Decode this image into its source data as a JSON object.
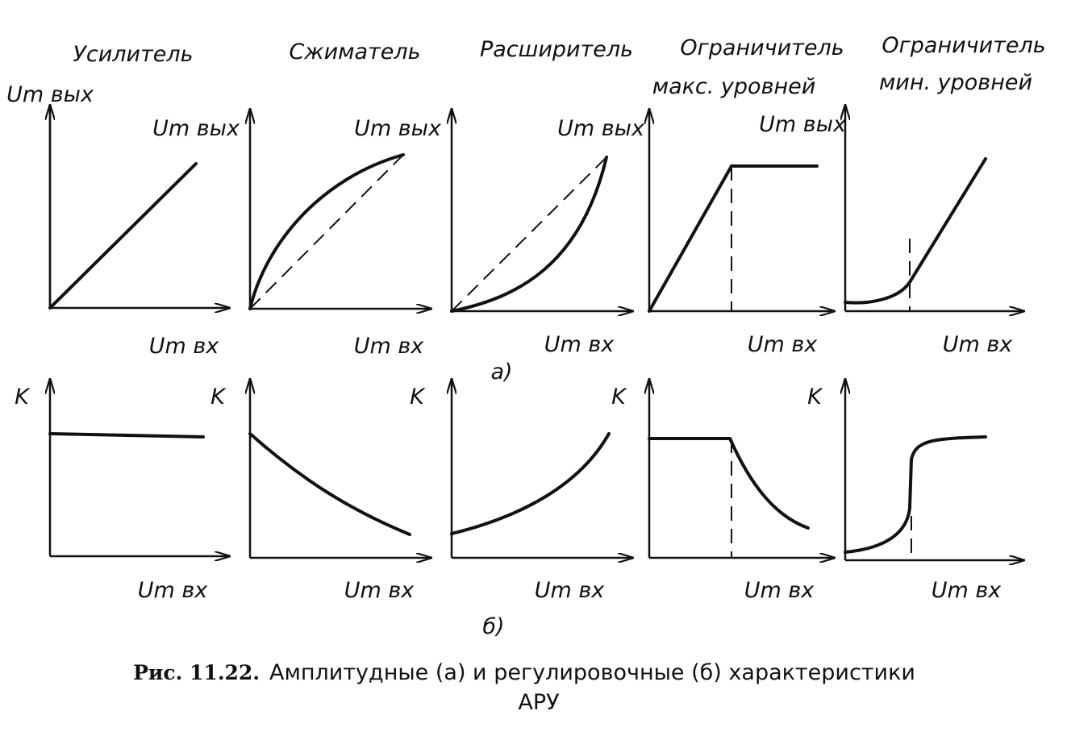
{
  "figure": {
    "columns": [
      {
        "title_lines": [
          "Усилитель"
        ],
        "top": {
          "y_label": "Um вых",
          "x_label": "Um вх"
        },
        "bottom": {
          "y_label": "K",
          "x_label": "Um вх"
        }
      },
      {
        "title_lines": [
          "Сжиматель"
        ],
        "top": {
          "y_label": "Um вых",
          "x_label": "Um вх"
        },
        "bottom": {
          "y_label": "K",
          "x_label": "Um вх"
        }
      },
      {
        "title_lines": [
          "Расширитель"
        ],
        "top": {
          "y_label": "Um вых",
          "x_label": "Um вх"
        },
        "bottom": {
          "y_label": "K",
          "x_label": "Um вх"
        }
      },
      {
        "title_lines": [
          "Ограничитель",
          "макс. уровней"
        ],
        "top": {
          "y_label": "Um вых",
          "x_label": "Um вх"
        },
        "bottom": {
          "y_label": "K",
          "x_label": "Um вх"
        }
      },
      {
        "title_lines": [
          "Ограничитель",
          "мин. уровней"
        ],
        "top": {
          "y_label": "Um вых",
          "x_label": "Um вх"
        },
        "bottom": {
          "y_label": "K",
          "x_label": "Um вх"
        }
      }
    ],
    "row_labels": [
      "а)",
      "б)"
    ],
    "caption": {
      "label": "Рис. 11.22.",
      "text_lines": [
        "Амплитудные (а) и регулировочные (б) характеристики",
        "АРУ"
      ]
    }
  }
}
